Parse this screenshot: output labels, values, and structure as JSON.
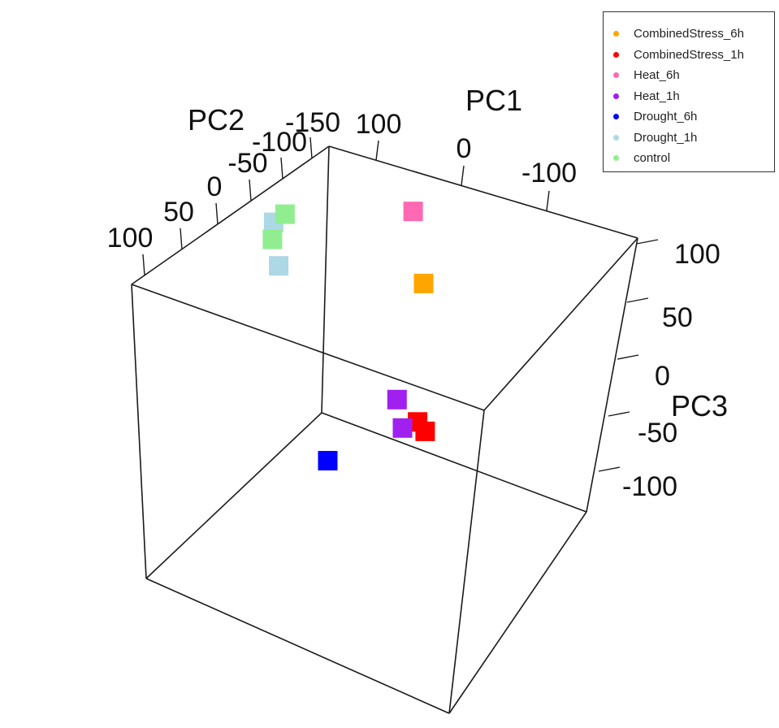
{
  "chart_data": {
    "type": "scatter",
    "dimensions": "3d",
    "axes": {
      "pc1": {
        "label": "PC1",
        "ticks": [
          "100",
          "0",
          "-100"
        ]
      },
      "pc2": {
        "label": "PC2",
        "ticks": [
          "100",
          "50",
          "0",
          "-50",
          "-100",
          "-150"
        ]
      },
      "pc3": {
        "label": "PC3",
        "ticks": [
          "100",
          "50",
          "0",
          "-50",
          "-100"
        ]
      }
    },
    "legend_position": "top-right",
    "grid": false,
    "series": [
      {
        "name": "CombinedStress_6h",
        "color": "#FFA500",
        "points": [
          {
            "pc1": -10,
            "pc2": 95,
            "pc3": 45
          }
        ]
      },
      {
        "name": "CombinedStress_1h",
        "color": "#FF0000",
        "points": [
          {
            "pc1": -45,
            "pc2": 60,
            "pc3": -85
          },
          {
            "pc1": -50,
            "pc2": 65,
            "pc3": -90
          }
        ]
      },
      {
        "name": "Heat_6h",
        "color": "#FF69B4",
        "points": [
          {
            "pc1": -40,
            "pc2": 40,
            "pc3": 90
          }
        ]
      },
      {
        "name": "Heat_1h",
        "color": "#A020F0",
        "points": [
          {
            "pc1": -50,
            "pc2": 25,
            "pc3": -80
          },
          {
            "pc1": -15,
            "pc2": 75,
            "pc3": -90
          }
        ]
      },
      {
        "name": "Drought_6h",
        "color": "#0000FF",
        "points": [
          {
            "pc1": 90,
            "pc2": 100,
            "pc3": -130
          }
        ]
      },
      {
        "name": "Drought_1h",
        "color": "#ADD8E6",
        "points": [
          {
            "pc1": 115,
            "pc2": 35,
            "pc3": 45
          },
          {
            "pc1": 110,
            "pc2": 40,
            "pc3": 10
          }
        ]
      },
      {
        "name": "control",
        "color": "#90EE90",
        "points": [
          {
            "pc1": 120,
            "pc2": 55,
            "pc3": 60
          },
          {
            "pc1": 115,
            "pc2": 35,
            "pc3": 30
          }
        ]
      }
    ]
  }
}
